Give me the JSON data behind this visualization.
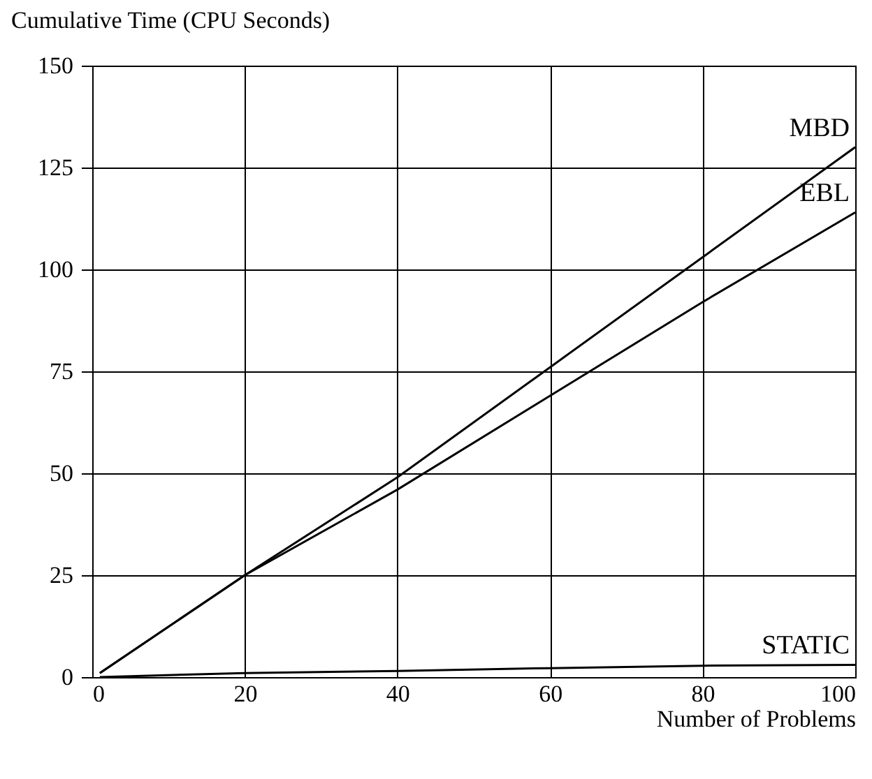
{
  "chart_data": {
    "type": "line",
    "ylabel": "Cumulative Time (CPU Seconds)",
    "xlabel": "Number of Problems",
    "x": [
      1,
      20,
      40,
      60,
      80,
      100
    ],
    "series": [
      {
        "name": "MBD",
        "color": "#000000",
        "values": [
          1,
          25,
          49,
          76,
          103,
          130
        ]
      },
      {
        "name": "EBL",
        "color": "#000000",
        "values": [
          1,
          25,
          46,
          69,
          92,
          114
        ]
      },
      {
        "name": "STATIC",
        "color": "#000000",
        "values": [
          0,
          1,
          1.5,
          2.2,
          2.8,
          3
        ]
      }
    ],
    "xlim": [
      0,
      100
    ],
    "xticks": [
      0,
      20,
      40,
      60,
      80,
      100
    ],
    "ylim": [
      0,
      150
    ],
    "yticks": [
      0,
      25,
      50,
      75,
      100,
      125,
      150
    ],
    "grid": true,
    "marker": "none",
    "line_style": "solid"
  }
}
